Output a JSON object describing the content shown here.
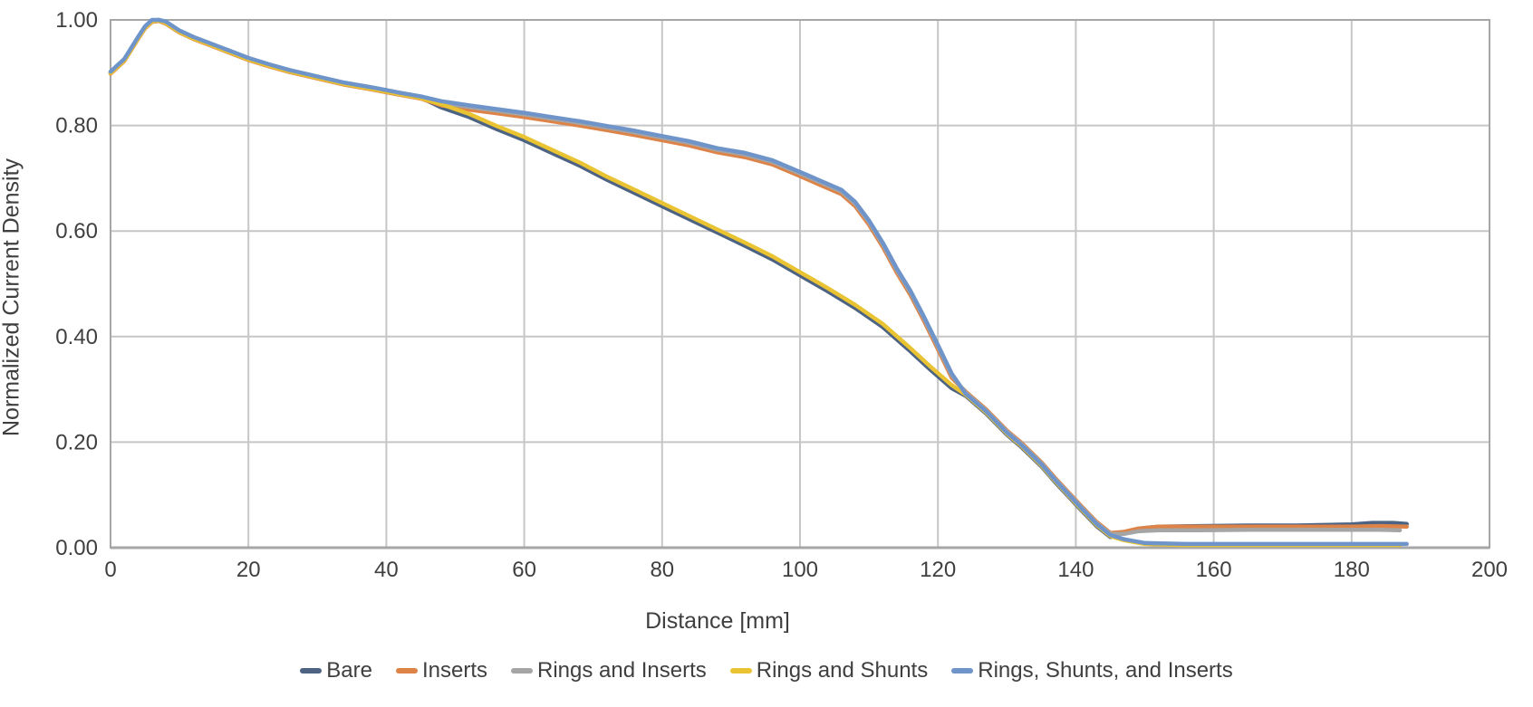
{
  "chart_data": {
    "type": "line",
    "title": "",
    "xlabel": "Distance [mm]",
    "ylabel": "Normalized Current Density",
    "xlim": [
      0,
      200
    ],
    "ylim": [
      0.0,
      1.0
    ],
    "grid": true,
    "legend_position": "bottom",
    "xtick_values": [
      0,
      20,
      40,
      60,
      80,
      100,
      120,
      140,
      160,
      180,
      200
    ],
    "xtick_labels": [
      "0",
      "20",
      "40",
      "60",
      "80",
      "100",
      "120",
      "140",
      "160",
      "180",
      "200"
    ],
    "ytick_values": [
      0.0,
      0.2,
      0.4,
      0.6,
      0.8,
      1.0
    ],
    "ytick_labels": [
      "0.00",
      "0.20",
      "0.40",
      "0.60",
      "0.80",
      "1.00"
    ],
    "grid_color": "#c6c6c6",
    "axis_color": "#a6a6a6",
    "text_color": "#3f3f3f",
    "background_color": "#ffffff",
    "series": [
      {
        "name": "Bare",
        "color": "#4d6384",
        "points": [
          [
            0,
            0.9
          ],
          [
            2,
            0.924
          ],
          [
            3,
            0.945
          ],
          [
            4,
            0.966
          ],
          [
            5,
            0.986
          ],
          [
            6,
            0.998
          ],
          [
            7,
            1.0
          ],
          [
            8,
            0.995
          ],
          [
            10,
            0.978
          ],
          [
            12,
            0.966
          ],
          [
            14,
            0.956
          ],
          [
            16,
            0.946
          ],
          [
            18,
            0.936
          ],
          [
            20,
            0.926
          ],
          [
            23,
            0.914
          ],
          [
            26,
            0.903
          ],
          [
            30,
            0.891
          ],
          [
            34,
            0.879
          ],
          [
            38,
            0.87
          ],
          [
            42,
            0.86
          ],
          [
            45,
            0.853
          ],
          [
            48,
            0.834
          ],
          [
            52,
            0.816
          ],
          [
            56,
            0.793
          ],
          [
            60,
            0.772
          ],
          [
            64,
            0.748
          ],
          [
            68,
            0.724
          ],
          [
            72,
            0.697
          ],
          [
            76,
            0.672
          ],
          [
            80,
            0.647
          ],
          [
            84,
            0.622
          ],
          [
            88,
            0.597
          ],
          [
            92,
            0.572
          ],
          [
            96,
            0.546
          ],
          [
            100,
            0.516
          ],
          [
            104,
            0.486
          ],
          [
            108,
            0.454
          ],
          [
            112,
            0.418
          ],
          [
            116,
            0.372
          ],
          [
            119,
            0.336
          ],
          [
            122,
            0.302
          ],
          [
            124,
            0.288
          ],
          [
            127,
            0.254
          ],
          [
            130,
            0.214
          ],
          [
            132,
            0.192
          ],
          [
            135,
            0.154
          ],
          [
            137,
            0.124
          ],
          [
            139,
            0.096
          ],
          [
            141,
            0.068
          ],
          [
            143,
            0.041
          ],
          [
            145,
            0.02
          ],
          [
            147,
            0.028
          ],
          [
            149,
            0.036
          ],
          [
            152,
            0.04
          ],
          [
            158,
            0.041
          ],
          [
            165,
            0.042
          ],
          [
            172,
            0.042
          ],
          [
            180,
            0.044
          ],
          [
            183,
            0.047
          ],
          [
            186,
            0.047
          ],
          [
            188,
            0.045
          ]
        ]
      },
      {
        "name": "Inserts",
        "color": "#de8347",
        "points": [
          [
            0,
            0.898
          ],
          [
            2,
            0.922
          ],
          [
            3,
            0.943
          ],
          [
            4,
            0.964
          ],
          [
            5,
            0.984
          ],
          [
            6,
            0.996
          ],
          [
            7,
            0.998
          ],
          [
            8,
            0.993
          ],
          [
            10,
            0.976
          ],
          [
            12,
            0.964
          ],
          [
            14,
            0.954
          ],
          [
            16,
            0.944
          ],
          [
            18,
            0.934
          ],
          [
            20,
            0.924
          ],
          [
            23,
            0.912
          ],
          [
            26,
            0.901
          ],
          [
            30,
            0.889
          ],
          [
            34,
            0.877
          ],
          [
            38,
            0.868
          ],
          [
            42,
            0.858
          ],
          [
            45,
            0.851
          ],
          [
            48,
            0.838
          ],
          [
            52,
            0.83
          ],
          [
            56,
            0.823
          ],
          [
            60,
            0.816
          ],
          [
            64,
            0.808
          ],
          [
            68,
            0.8
          ],
          [
            72,
            0.791
          ],
          [
            76,
            0.782
          ],
          [
            80,
            0.772
          ],
          [
            84,
            0.762
          ],
          [
            88,
            0.749
          ],
          [
            92,
            0.74
          ],
          [
            96,
            0.726
          ],
          [
            100,
            0.704
          ],
          [
            103,
            0.687
          ],
          [
            106,
            0.67
          ],
          [
            108,
            0.647
          ],
          [
            110,
            0.612
          ],
          [
            112,
            0.57
          ],
          [
            114,
            0.522
          ],
          [
            116,
            0.479
          ],
          [
            118,
            0.429
          ],
          [
            120,
            0.376
          ],
          [
            122,
            0.322
          ],
          [
            124,
            0.296
          ],
          [
            127,
            0.262
          ],
          [
            130,
            0.222
          ],
          [
            132,
            0.2
          ],
          [
            135,
            0.162
          ],
          [
            137,
            0.132
          ],
          [
            139,
            0.104
          ],
          [
            141,
            0.076
          ],
          [
            143,
            0.049
          ],
          [
            145,
            0.028
          ],
          [
            147,
            0.03
          ],
          [
            149,
            0.036
          ],
          [
            152,
            0.04
          ],
          [
            158,
            0.04
          ],
          [
            165,
            0.04
          ],
          [
            172,
            0.04
          ],
          [
            180,
            0.04
          ],
          [
            184,
            0.041
          ],
          [
            188,
            0.04
          ]
        ]
      },
      {
        "name": "Rings and Inserts",
        "color": "#a5a5a5",
        "points": [
          [
            0,
            0.901
          ],
          [
            2,
            0.925
          ],
          [
            3,
            0.946
          ],
          [
            4,
            0.967
          ],
          [
            5,
            0.987
          ],
          [
            6,
            0.999
          ],
          [
            7,
            1.0
          ],
          [
            8,
            0.996
          ],
          [
            10,
            0.979
          ],
          [
            12,
            0.967
          ],
          [
            14,
            0.957
          ],
          [
            16,
            0.947
          ],
          [
            18,
            0.937
          ],
          [
            20,
            0.927
          ],
          [
            23,
            0.915
          ],
          [
            26,
            0.904
          ],
          [
            30,
            0.892
          ],
          [
            34,
            0.88
          ],
          [
            38,
            0.871
          ],
          [
            42,
            0.861
          ],
          [
            45,
            0.854
          ],
          [
            48,
            0.843
          ],
          [
            52,
            0.835
          ],
          [
            56,
            0.828
          ],
          [
            60,
            0.821
          ],
          [
            64,
            0.813
          ],
          [
            68,
            0.805
          ],
          [
            72,
            0.796
          ],
          [
            76,
            0.787
          ],
          [
            80,
            0.777
          ],
          [
            84,
            0.767
          ],
          [
            88,
            0.754
          ],
          [
            92,
            0.745
          ],
          [
            96,
            0.731
          ],
          [
            100,
            0.709
          ],
          [
            103,
            0.692
          ],
          [
            106,
            0.675
          ],
          [
            108,
            0.652
          ],
          [
            110,
            0.617
          ],
          [
            112,
            0.575
          ],
          [
            114,
            0.527
          ],
          [
            116,
            0.484
          ],
          [
            118,
            0.434
          ],
          [
            120,
            0.381
          ],
          [
            122,
            0.327
          ],
          [
            124,
            0.294
          ],
          [
            127,
            0.26
          ],
          [
            130,
            0.22
          ],
          [
            132,
            0.198
          ],
          [
            135,
            0.16
          ],
          [
            137,
            0.13
          ],
          [
            139,
            0.102
          ],
          [
            141,
            0.074
          ],
          [
            143,
            0.047
          ],
          [
            145,
            0.026
          ],
          [
            147,
            0.026
          ],
          [
            149,
            0.031
          ],
          [
            152,
            0.033
          ],
          [
            158,
            0.033
          ],
          [
            165,
            0.034
          ],
          [
            172,
            0.034
          ],
          [
            180,
            0.034
          ],
          [
            184,
            0.034
          ],
          [
            187,
            0.033
          ]
        ]
      },
      {
        "name": "Rings and Shunts",
        "color": "#e9c331",
        "points": [
          [
            0,
            0.899
          ],
          [
            2,
            0.923
          ],
          [
            3,
            0.944
          ],
          [
            4,
            0.965
          ],
          [
            5,
            0.985
          ],
          [
            6,
            0.997
          ],
          [
            7,
            0.999
          ],
          [
            8,
            0.994
          ],
          [
            10,
            0.977
          ],
          [
            12,
            0.965
          ],
          [
            14,
            0.955
          ],
          [
            16,
            0.945
          ],
          [
            18,
            0.935
          ],
          [
            20,
            0.925
          ],
          [
            23,
            0.913
          ],
          [
            26,
            0.902
          ],
          [
            30,
            0.89
          ],
          [
            34,
            0.878
          ],
          [
            38,
            0.869
          ],
          [
            42,
            0.859
          ],
          [
            45,
            0.852
          ],
          [
            48,
            0.84
          ],
          [
            52,
            0.822
          ],
          [
            56,
            0.799
          ],
          [
            60,
            0.778
          ],
          [
            64,
            0.754
          ],
          [
            68,
            0.73
          ],
          [
            72,
            0.703
          ],
          [
            76,
            0.678
          ],
          [
            80,
            0.653
          ],
          [
            84,
            0.628
          ],
          [
            88,
            0.603
          ],
          [
            92,
            0.578
          ],
          [
            96,
            0.552
          ],
          [
            100,
            0.522
          ],
          [
            104,
            0.492
          ],
          [
            108,
            0.46
          ],
          [
            112,
            0.424
          ],
          [
            116,
            0.378
          ],
          [
            119,
            0.342
          ],
          [
            122,
            0.308
          ],
          [
            124,
            0.29
          ],
          [
            127,
            0.256
          ],
          [
            130,
            0.216
          ],
          [
            132,
            0.194
          ],
          [
            135,
            0.156
          ],
          [
            137,
            0.126
          ],
          [
            139,
            0.098
          ],
          [
            141,
            0.07
          ],
          [
            143,
            0.043
          ],
          [
            145,
            0.022
          ],
          [
            147,
            0.014
          ],
          [
            150,
            0.007
          ],
          [
            156,
            0.005
          ],
          [
            165,
            0.005
          ],
          [
            174,
            0.005
          ],
          [
            182,
            0.005
          ],
          [
            187,
            0.005
          ]
        ]
      },
      {
        "name": "Rings, Shunts, and Inserts",
        "color": "#6e94c9",
        "points": [
          [
            0,
            0.902
          ],
          [
            2,
            0.926
          ],
          [
            3,
            0.947
          ],
          [
            4,
            0.968
          ],
          [
            5,
            0.988
          ],
          [
            6,
            1.0
          ],
          [
            7,
            1.0
          ],
          [
            8,
            0.997
          ],
          [
            10,
            0.98
          ],
          [
            12,
            0.968
          ],
          [
            14,
            0.958
          ],
          [
            16,
            0.948
          ],
          [
            18,
            0.938
          ],
          [
            20,
            0.928
          ],
          [
            23,
            0.916
          ],
          [
            26,
            0.905
          ],
          [
            30,
            0.893
          ],
          [
            34,
            0.881
          ],
          [
            38,
            0.872
          ],
          [
            42,
            0.862
          ],
          [
            45,
            0.855
          ],
          [
            48,
            0.846
          ],
          [
            52,
            0.838
          ],
          [
            56,
            0.831
          ],
          [
            60,
            0.824
          ],
          [
            64,
            0.816
          ],
          [
            68,
            0.808
          ],
          [
            72,
            0.799
          ],
          [
            76,
            0.79
          ],
          [
            80,
            0.78
          ],
          [
            84,
            0.77
          ],
          [
            88,
            0.757
          ],
          [
            92,
            0.748
          ],
          [
            96,
            0.734
          ],
          [
            100,
            0.712
          ],
          [
            103,
            0.695
          ],
          [
            106,
            0.678
          ],
          [
            108,
            0.655
          ],
          [
            110,
            0.62
          ],
          [
            112,
            0.578
          ],
          [
            114,
            0.53
          ],
          [
            116,
            0.487
          ],
          [
            118,
            0.437
          ],
          [
            120,
            0.384
          ],
          [
            122,
            0.33
          ],
          [
            124,
            0.292
          ],
          [
            127,
            0.258
          ],
          [
            130,
            0.218
          ],
          [
            132,
            0.196
          ],
          [
            135,
            0.158
          ],
          [
            137,
            0.128
          ],
          [
            139,
            0.1
          ],
          [
            141,
            0.072
          ],
          [
            143,
            0.045
          ],
          [
            145,
            0.024
          ],
          [
            147,
            0.016
          ],
          [
            150,
            0.009
          ],
          [
            156,
            0.007
          ],
          [
            165,
            0.007
          ],
          [
            174,
            0.007
          ],
          [
            182,
            0.007
          ],
          [
            188,
            0.007
          ]
        ]
      }
    ]
  }
}
